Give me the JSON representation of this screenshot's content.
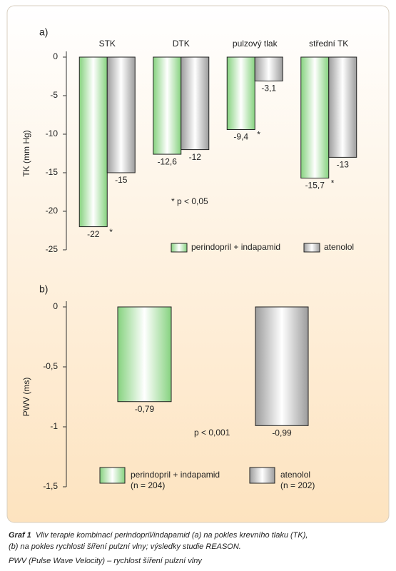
{
  "chart_data": [
    {
      "type": "bar",
      "panel": "a)",
      "ylabel": "TK (mm Hg)",
      "categories": [
        "STK",
        "DTK",
        "pulzový tlak",
        "střední TK"
      ],
      "series": [
        {
          "name": "perindopril + indapamid",
          "color": "#86d27f",
          "values": [
            -22,
            -12.6,
            -9.4,
            -15.7
          ],
          "value_labels": [
            "-22",
            "-12,6",
            "-9,4",
            "-15,7"
          ],
          "markers": [
            "*",
            null,
            "*",
            "*"
          ]
        },
        {
          "name": "atenolol",
          "color": "#9c9c9c",
          "values": [
            -15,
            -12,
            -3.1,
            -13
          ],
          "value_labels": [
            "-15",
            "-12",
            "-3,1",
            "-13"
          ]
        }
      ],
      "annotation": "* p < 0,05",
      "ylim": [
        -25,
        0
      ],
      "yticks": [
        0,
        -5,
        -10,
        -15,
        -20,
        -25
      ]
    },
    {
      "type": "bar",
      "panel": "b)",
      "ylabel": "PWV (ms)",
      "series": [
        {
          "name": "perindopril + indapamid",
          "note": "(n = 204)",
          "color": "#86d27f",
          "values": [
            -0.79
          ],
          "value_labels": [
            "-0,79"
          ]
        },
        {
          "name": "atenolol",
          "note": "(n = 202)",
          "color": "#9c9c9c",
          "values": [
            -0.99
          ],
          "value_labels": [
            "-0,99"
          ]
        }
      ],
      "annotation": "p < 0,001",
      "ylim": [
        -1.5,
        0
      ],
      "yticks": [
        0,
        {
          "value": -0.5,
          "label": "-0,5"
        },
        -1,
        {
          "value": -1.5,
          "label": "-1,5"
        }
      ]
    }
  ],
  "caption": {
    "label": "Graf 1",
    "lines": [
      "Vliv terapie kombinací perindopril/indapamid (a) na pokles krevního tlaku (TK),",
      "(b) na pokles rychlosti šíření pulzní vlny; výsledky studie REASON.",
      "PWV (Pulse Wave Velocity) – rychlost šíření pulzní vlny"
    ]
  }
}
